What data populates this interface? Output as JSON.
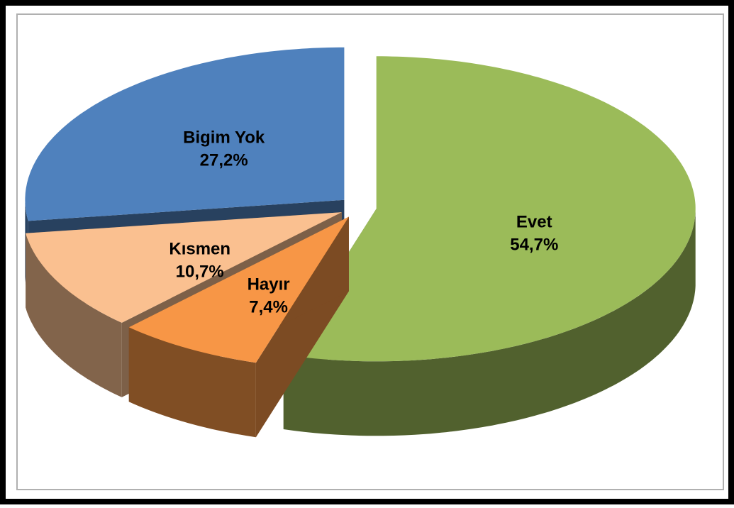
{
  "chart_data": {
    "type": "pie3d",
    "categories": [
      "Evet",
      "Hayır",
      "Kısmen",
      "Bigim Yok"
    ],
    "values": [
      54.7,
      7.4,
      10.7,
      27.2
    ],
    "value_labels": [
      "54,7%",
      "7,4%",
      "10,7%",
      "27,2%"
    ],
    "colors": [
      "#9bbb59",
      "#f79646",
      "#fac090",
      "#4f81bd"
    ]
  }
}
